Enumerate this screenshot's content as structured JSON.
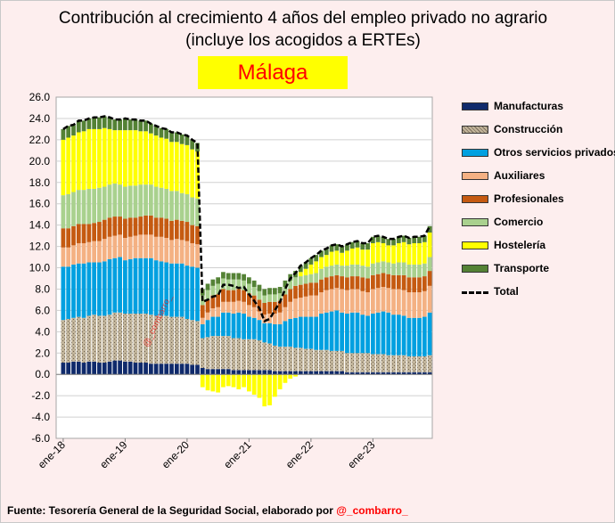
{
  "title": "Contribución al crecimiento 4 años del empleo privado no agrario (incluye los acogidos a ERTEs)",
  "subtitle": "Málaga",
  "footer": {
    "source": "Fuente: Tesorería General de la Seguridad Social, elaborado por ",
    "handle": "@_combarro_"
  },
  "watermark": "@_combarro_",
  "chart_data": {
    "type": "bar",
    "stacked": true,
    "title": "Contribución al crecimiento 4 años del empleo privado no agrario (incluye los acogidos a ERTEs)",
    "subtitle": "Málaga",
    "xlabel": "",
    "ylabel": "",
    "ylim": [
      -6.0,
      26.0
    ],
    "y_ticks": [
      "-6.0",
      "-4.0",
      "-2.0",
      "0.0",
      "2.0",
      "4.0",
      "6.0",
      "8.0",
      "10.0",
      "12.0",
      "14.0",
      "16.0",
      "18.0",
      "20.0",
      "22.0",
      "24.0",
      "26.0"
    ],
    "grid": true,
    "legend_position": "right",
    "x_tick_labels": [
      {
        "label": "ene-18",
        "index": 0
      },
      {
        "label": "ene-19",
        "index": 12
      },
      {
        "label": "ene-20",
        "index": 24
      },
      {
        "label": "ene-21",
        "index": 36
      },
      {
        "label": "ene-22",
        "index": 48
      },
      {
        "label": "ene-23",
        "index": 60
      }
    ],
    "categories": [
      "ene-18",
      "feb-18",
      "mar-18",
      "abr-18",
      "may-18",
      "jun-18",
      "jul-18",
      "ago-18",
      "sep-18",
      "oct-18",
      "nov-18",
      "dic-18",
      "ene-19",
      "feb-19",
      "mar-19",
      "abr-19",
      "may-19",
      "jun-19",
      "jul-19",
      "ago-19",
      "sep-19",
      "oct-19",
      "nov-19",
      "dic-19",
      "ene-20",
      "feb-20",
      "mar-20",
      "abr-20",
      "may-20",
      "jun-20",
      "jul-20",
      "ago-20",
      "sep-20",
      "oct-20",
      "nov-20",
      "dic-20",
      "ene-21",
      "feb-21",
      "mar-21",
      "abr-21",
      "may-21",
      "jun-21",
      "jul-21",
      "ago-21",
      "sep-21",
      "oct-21",
      "nov-21",
      "dic-21",
      "ene-22",
      "feb-22",
      "mar-22",
      "abr-22",
      "may-22",
      "jun-22",
      "jul-22",
      "ago-22",
      "sep-22",
      "oct-22",
      "nov-22",
      "dic-22",
      "ene-23",
      "feb-23",
      "mar-23",
      "abr-23",
      "may-23",
      "jun-23",
      "jul-23",
      "ago-23",
      "sep-23",
      "oct-23",
      "nov-23",
      "dic-23"
    ],
    "series": [
      {
        "name": "Manufacturas",
        "color": "#0f2a6b",
        "values": [
          1.1,
          1.1,
          1.2,
          1.2,
          1.1,
          1.2,
          1.2,
          1.1,
          1.1,
          1.2,
          1.3,
          1.3,
          1.2,
          1.2,
          1.1,
          1.1,
          1.1,
          1.0,
          1.0,
          1.0,
          1.0,
          1.0,
          1.0,
          1.0,
          1.0,
          0.9,
          0.9,
          0.6,
          0.5,
          0.5,
          0.5,
          0.5,
          0.5,
          0.4,
          0.4,
          0.4,
          0.4,
          0.4,
          0.4,
          0.4,
          0.4,
          0.3,
          0.3,
          0.3,
          0.3,
          0.3,
          0.3,
          0.3,
          0.3,
          0.3,
          0.3,
          0.3,
          0.3,
          0.3,
          0.3,
          0.2,
          0.2,
          0.2,
          0.2,
          0.2,
          0.2,
          0.2,
          0.2,
          0.2,
          0.2,
          0.2,
          0.2,
          0.2,
          0.2,
          0.2,
          0.2,
          0.2
        ]
      },
      {
        "name": "Construcción",
        "color": "#c2b59b",
        "values": [
          4.0,
          4.1,
          4.1,
          4.2,
          4.2,
          4.3,
          4.4,
          4.4,
          4.4,
          4.4,
          4.5,
          4.5,
          4.5,
          4.5,
          4.6,
          4.6,
          4.6,
          4.6,
          4.5,
          4.5,
          4.5,
          4.4,
          4.4,
          4.4,
          4.2,
          4.2,
          4.1,
          2.8,
          3.0,
          3.1,
          3.1,
          3.1,
          3.1,
          3.0,
          3.0,
          2.9,
          2.9,
          2.9,
          2.8,
          2.6,
          2.5,
          2.4,
          2.3,
          2.3,
          2.3,
          2.2,
          2.2,
          2.1,
          2.1,
          2.0,
          2.0,
          2.0,
          1.9,
          1.9,
          1.9,
          1.8,
          1.8,
          1.8,
          1.8,
          1.8,
          1.7,
          1.7,
          1.7,
          1.6,
          1.6,
          1.6,
          1.6,
          1.5,
          1.5,
          1.5,
          1.5,
          1.6
        ]
      },
      {
        "name": "Otros servicios privados",
        "color": "#00a0e0",
        "values": [
          5.0,
          4.9,
          5.0,
          5.0,
          5.1,
          5.0,
          4.9,
          5.0,
          5.1,
          5.2,
          5.1,
          5.2,
          5.0,
          5.1,
          5.2,
          5.2,
          5.2,
          5.3,
          5.2,
          5.1,
          5.0,
          5.0,
          5.0,
          5.0,
          5.0,
          5.0,
          5.0,
          1.3,
          1.6,
          1.8,
          1.8,
          2.2,
          2.2,
          2.3,
          2.4,
          2.4,
          2.1,
          2.0,
          1.9,
          1.8,
          1.9,
          2.0,
          2.1,
          2.4,
          2.6,
          2.8,
          2.9,
          3.0,
          3.0,
          3.1,
          3.4,
          3.5,
          3.7,
          3.8,
          3.6,
          3.7,
          3.8,
          3.8,
          3.6,
          3.5,
          3.8,
          3.9,
          4.0,
          4.0,
          3.8,
          3.8,
          3.7,
          3.6,
          3.6,
          3.6,
          3.7,
          4.0
        ]
      },
      {
        "name": "Auxiliares",
        "color": "#f4b183",
        "values": [
          1.8,
          1.8,
          1.8,
          1.9,
          1.9,
          1.9,
          2.0,
          2.0,
          2.1,
          2.1,
          2.1,
          2.1,
          2.1,
          2.1,
          2.1,
          2.2,
          2.2,
          2.2,
          2.2,
          2.3,
          2.3,
          2.2,
          2.3,
          2.2,
          2.3,
          2.2,
          2.2,
          0.6,
          0.7,
          0.8,
          0.9,
          1.0,
          1.0,
          1.1,
          1.1,
          1.1,
          1.1,
          1.0,
          0.8,
          0.8,
          0.9,
          1.0,
          1.1,
          1.3,
          1.6,
          1.8,
          1.8,
          1.9,
          2.0,
          2.0,
          2.0,
          2.1,
          2.1,
          2.1,
          2.2,
          2.2,
          2.2,
          2.2,
          2.2,
          2.2,
          2.3,
          2.3,
          2.3,
          2.3,
          2.4,
          2.4,
          2.4,
          2.4,
          2.4,
          2.4,
          2.4,
          2.5
        ]
      },
      {
        "name": "Profesionales",
        "color": "#c55a11",
        "values": [
          1.8,
          1.8,
          1.8,
          1.8,
          1.8,
          1.7,
          1.7,
          1.8,
          1.8,
          1.8,
          1.8,
          1.7,
          1.8,
          1.8,
          1.7,
          1.7,
          1.8,
          1.8,
          1.8,
          1.8,
          1.8,
          1.8,
          1.8,
          1.8,
          1.8,
          1.7,
          1.7,
          1.2,
          1.2,
          1.2,
          1.2,
          1.2,
          1.1,
          1.1,
          1.1,
          1.1,
          1.1,
          1.1,
          1.1,
          1.1,
          1.1,
          1.1,
          1.1,
          1.2,
          1.2,
          1.2,
          1.2,
          1.2,
          1.2,
          1.2,
          1.2,
          1.2,
          1.2,
          1.2,
          1.2,
          1.2,
          1.2,
          1.2,
          1.3,
          1.3,
          1.3,
          1.3,
          1.3,
          1.3,
          1.3,
          1.3,
          1.4,
          1.4,
          1.4,
          1.4,
          1.4,
          1.4
        ]
      },
      {
        "name": "Comercio",
        "color": "#a9d18e",
        "values": [
          3.1,
          3.2,
          3.2,
          3.2,
          3.2,
          3.3,
          3.2,
          3.2,
          3.1,
          3.1,
          3.1,
          3.0,
          3.0,
          3.0,
          3.0,
          3.0,
          2.9,
          2.9,
          2.9,
          2.8,
          2.8,
          2.8,
          2.7,
          2.6,
          2.6,
          2.6,
          2.6,
          0.9,
          0.9,
          0.9,
          1.0,
          1.0,
          1.0,
          1.0,
          0.9,
          0.9,
          0.9,
          0.8,
          0.8,
          0.7,
          0.7,
          0.7,
          0.7,
          0.7,
          0.8,
          0.8,
          0.8,
          0.8,
          0.8,
          0.9,
          1.0,
          1.0,
          1.0,
          1.0,
          1.0,
          1.1,
          1.1,
          1.1,
          1.1,
          1.1,
          1.1,
          1.1,
          1.1,
          1.1,
          1.1,
          1.2,
          1.2,
          1.2,
          1.2,
          1.2,
          1.2,
          1.3
        ]
      },
      {
        "name": "Hostelería",
        "color": "#ffff00",
        "values": [
          5.2,
          5.3,
          5.3,
          5.4,
          5.5,
          5.6,
          5.6,
          5.5,
          5.5,
          5.2,
          5.0,
          5.1,
          5.3,
          5.2,
          5.2,
          5.0,
          5.0,
          4.8,
          4.8,
          4.7,
          4.7,
          4.6,
          4.6,
          4.6,
          4.6,
          4.5,
          4.4,
          -1.2,
          -1.5,
          -1.6,
          -1.7,
          -1.2,
          -1.1,
          -1.2,
          -1.4,
          -1.2,
          -1.6,
          -1.9,
          -2.2,
          -3.0,
          -2.9,
          -2.1,
          -1.4,
          -0.8,
          -0.4,
          -0.2,
          0.4,
          0.6,
          0.9,
          1.1,
          1.1,
          1.1,
          1.3,
          1.3,
          1.2,
          1.4,
          1.5,
          1.6,
          1.5,
          1.6,
          1.9,
          1.9,
          1.7,
          1.6,
          1.7,
          1.8,
          1.9,
          1.9,
          2.0,
          2.0,
          2.0,
          2.3
        ]
      },
      {
        "name": "Transporte",
        "color": "#548235",
        "values": [
          1.0,
          1.1,
          1.0,
          1.1,
          1.0,
          1.0,
          1.1,
          1.1,
          1.1,
          1.1,
          1.0,
          1.0,
          1.1,
          1.0,
          1.0,
          1.0,
          1.0,
          0.9,
          0.9,
          0.9,
          0.9,
          0.9,
          0.9,
          0.9,
          0.9,
          0.9,
          0.8,
          0.6,
          0.6,
          0.6,
          0.6,
          0.6,
          0.6,
          0.6,
          0.6,
          0.6,
          0.6,
          0.6,
          0.6,
          0.6,
          0.6,
          0.6,
          0.6,
          0.6,
          0.6,
          0.6,
          0.6,
          0.6,
          0.6,
          0.6,
          0.6,
          0.6,
          0.6,
          0.6,
          0.6,
          0.6,
          0.6,
          0.6,
          0.6,
          0.6,
          0.6,
          0.6,
          0.6,
          0.6,
          0.6,
          0.6,
          0.6,
          0.6,
          0.6,
          0.6,
          0.6,
          0.6
        ]
      }
    ],
    "total_series": {
      "name": "Total",
      "color": "#000000",
      "style": "dashed"
    }
  }
}
